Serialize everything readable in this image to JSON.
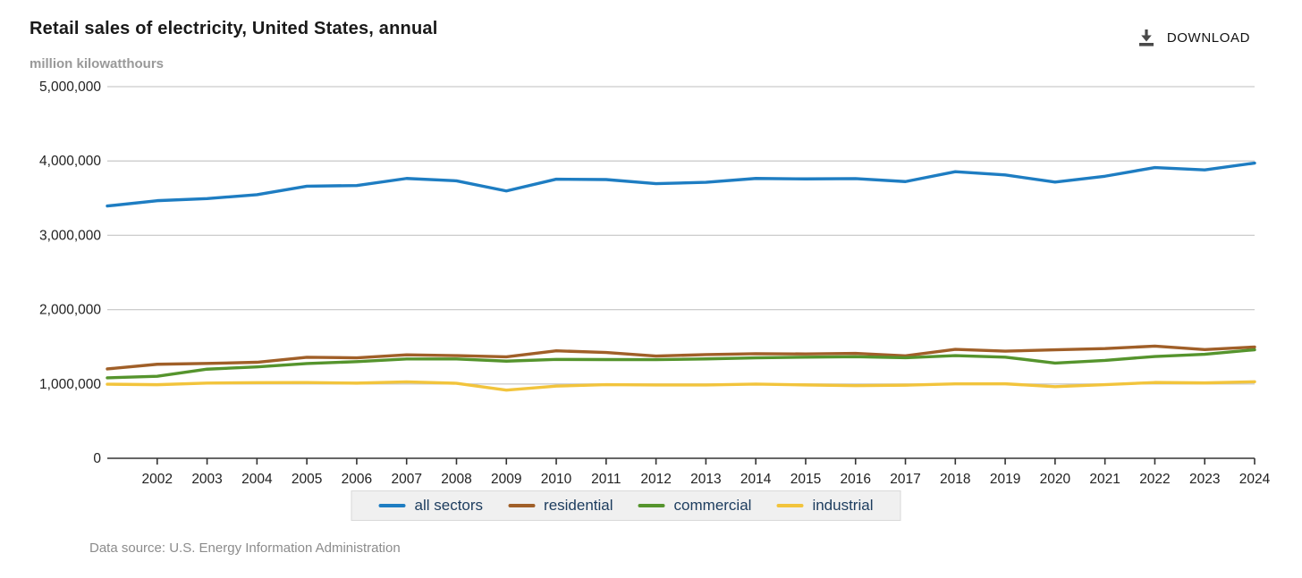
{
  "header": {
    "title": "Retail sales of electricity, United States, annual",
    "subtitle": "million kilowatthours",
    "download_label": "DOWNLOAD"
  },
  "footer": {
    "source": "Data source: U.S. Energy Information Administration"
  },
  "colors": {
    "grid": "#cccccc",
    "axis": "#333333",
    "title_text": "#1a1a1a",
    "subtitle_text": "#999999",
    "legend_text": "#1c3c5e",
    "legend_bg": "#f0f0f0"
  },
  "chart_data": {
    "type": "line",
    "title": "Retail sales of electricity, United States, annual",
    "xlabel": "",
    "ylabel": "million kilowatthours",
    "ylim": [
      0,
      5000000
    ],
    "grid": "horizontal",
    "legend_position": "bottom",
    "x": [
      2001,
      2002,
      2003,
      2004,
      2005,
      2006,
      2007,
      2008,
      2009,
      2010,
      2011,
      2012,
      2013,
      2014,
      2015,
      2016,
      2017,
      2018,
      2019,
      2020,
      2021,
      2022,
      2023,
      2024
    ],
    "x_tick_labels": [
      "2002",
      "2003",
      "2004",
      "2005",
      "2006",
      "2007",
      "2008",
      "2009",
      "2010",
      "2011",
      "2012",
      "2013",
      "2014",
      "2015",
      "2016",
      "2017",
      "2018",
      "2019",
      "2020",
      "2021",
      "2022",
      "2023",
      "2024"
    ],
    "y_ticks": [
      0,
      1000000,
      2000000,
      3000000,
      4000000,
      5000000
    ],
    "y_tick_labels": [
      "0",
      "1,000,000",
      "2,000,000",
      "3,000,000",
      "4,000,000",
      "5,000,000"
    ],
    "series": [
      {
        "name": "all sectors",
        "color": "#1e7dc2",
        "values": [
          3394000,
          3466000,
          3494000,
          3547000,
          3661000,
          3670000,
          3765000,
          3733000,
          3597000,
          3755000,
          3750000,
          3695000,
          3713000,
          3765000,
          3759000,
          3763000,
          3723000,
          3856000,
          3812000,
          3716000,
          3795000,
          3912000,
          3880000,
          3972000
        ]
      },
      {
        "name": "residential",
        "color": "#a05f28",
        "values": [
          1202000,
          1265000,
          1276000,
          1292000,
          1359000,
          1352000,
          1392000,
          1381000,
          1365000,
          1446000,
          1423000,
          1375000,
          1395000,
          1407000,
          1404000,
          1411000,
          1379000,
          1465000,
          1441000,
          1459000,
          1476000,
          1509000,
          1462000,
          1497000
        ]
      },
      {
        "name": "commercial",
        "color": "#55942d",
        "values": [
          1083000,
          1104000,
          1199000,
          1230000,
          1275000,
          1300000,
          1336000,
          1336000,
          1307000,
          1330000,
          1328000,
          1327000,
          1337000,
          1352000,
          1361000,
          1367000,
          1353000,
          1382000,
          1361000,
          1281000,
          1317000,
          1370000,
          1400000,
          1460000
        ]
      },
      {
        "name": "industrial",
        "color": "#f2c43c",
        "values": [
          997000,
          990000,
          1012000,
          1018000,
          1019000,
          1011000,
          1028000,
          1009000,
          917000,
          971000,
          991000,
          986000,
          986000,
          998000,
          987000,
          977000,
          984000,
          1001000,
          1002000,
          964000,
          991000,
          1020000,
          1014000,
          1030000
        ]
      }
    ]
  }
}
